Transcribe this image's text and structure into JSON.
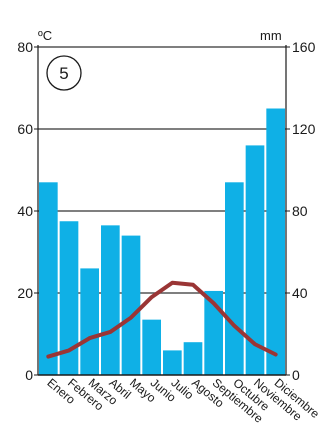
{
  "chart_data": {
    "type": "bar",
    "badge": "5",
    "categories": [
      "Enero",
      "Febrero",
      "Marzo",
      "Abril",
      "Mayo",
      "Junio",
      "Julio",
      "Agosto",
      "Septiembre",
      "Octubre",
      "Noviembre",
      "Diciembre"
    ],
    "series": [
      {
        "type": "bar",
        "axis": "right",
        "values": [
          94,
          75,
          52,
          73,
          68,
          27,
          12,
          16,
          41,
          94,
          112,
          130
        ],
        "color": "#0fb0e6"
      },
      {
        "type": "line",
        "axis": "left",
        "values": [
          4.5,
          6,
          9,
          10.5,
          14,
          19,
          22.5,
          22,
          17.5,
          12,
          7.5,
          5
        ],
        "color": "#9a3535"
      }
    ],
    "y_left": {
      "unit": "ºC",
      "ylim": [
        0,
        80
      ],
      "ticks": [
        "0",
        "20",
        "40",
        "60",
        "80"
      ]
    },
    "y_right": {
      "unit": "mm",
      "ylim": [
        0,
        160
      ],
      "ticks": [
        "0",
        "40",
        "80",
        "120",
        "160"
      ]
    },
    "grid": true,
    "title": "",
    "xlabel": "",
    "ylabel": ""
  }
}
